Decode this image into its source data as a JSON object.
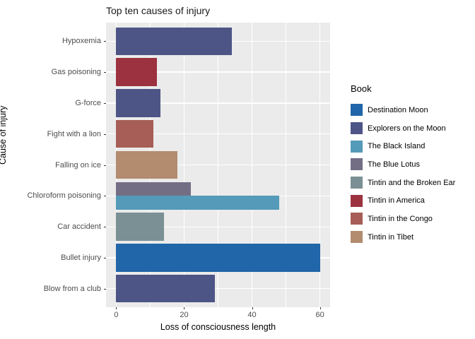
{
  "chart_data": {
    "type": "bar",
    "orientation": "horizontal",
    "title": "Top ten causes of injury",
    "xlabel": "Loss of consciousness length",
    "ylabel": "Cause of injury",
    "x_ticks": [
      0,
      20,
      40,
      60
    ],
    "x_minor_ticks": [
      10,
      30,
      50
    ],
    "xlim": [
      -3,
      63
    ],
    "grid": "major-and-minor",
    "panel_background": "#ebebeb",
    "grid_color": "#ffffff",
    "tick_color": "#333333",
    "axis_text_color": "#4d4d4d",
    "legend_position": "right",
    "legend_title": "Book",
    "books": [
      {
        "name": "Destination Moon",
        "color": "#2066a8"
      },
      {
        "name": "Explorers on the Moon",
        "color": "#4d5586"
      },
      {
        "name": "The Black Island",
        "color": "#559ab8"
      },
      {
        "name": "The Blue Lotus",
        "color": "#746e85"
      },
      {
        "name": "Tintin and the Broken Ear",
        "color": "#7b9094"
      },
      {
        "name": "Tintin in America",
        "color": "#9c3240"
      },
      {
        "name": "Tintin in the Congo",
        "color": "#a65e56"
      },
      {
        "name": "Tintin in Tibet",
        "color": "#b38b6e"
      }
    ],
    "categories": [
      {
        "label": "Hypoxemia",
        "bars": [
          {
            "book": "Explorers on the Moon",
            "value": 34
          }
        ]
      },
      {
        "label": "Gas poisoning",
        "bars": [
          {
            "book": "Tintin in America",
            "value": 12
          }
        ]
      },
      {
        "label": "G-force",
        "bars": [
          {
            "book": "Explorers on the Moon",
            "value": 13
          }
        ]
      },
      {
        "label": "Fight with a lion",
        "bars": [
          {
            "book": "Tintin in the Congo",
            "value": 11
          }
        ]
      },
      {
        "label": "Falling on ice",
        "bars": [
          {
            "book": "Tintin in Tibet",
            "value": 18
          }
        ]
      },
      {
        "label": "Chloroform poisoning",
        "bars": [
          {
            "book": "The Blue Lotus",
            "value": 22
          },
          {
            "book": "The Black Island",
            "value": 48
          }
        ]
      },
      {
        "label": "Car accident",
        "bars": [
          {
            "book": "Tintin and the Broken Ear",
            "value": 14
          }
        ]
      },
      {
        "label": "Bullet injury",
        "bars": [
          {
            "book": "Destination Moon",
            "value": 60
          }
        ]
      },
      {
        "label": "Blow from a club",
        "bars": [
          {
            "book": "Explorers on the Moon",
            "value": 29
          }
        ]
      }
    ]
  }
}
